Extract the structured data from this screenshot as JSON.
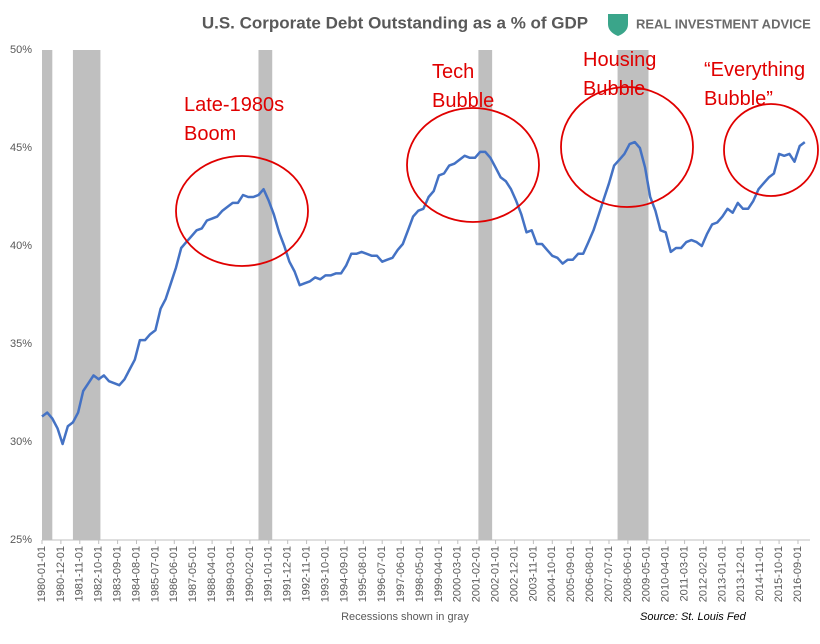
{
  "chart_data": {
    "type": "line",
    "title": "U.S. Corporate Debt Outstanding as a % of GDP",
    "brand": "REAL INVESTMENT ADVICE",
    "x_label": "Recessions shown in gray",
    "source": "Source: St. Louis Fed",
    "xlim": [
      "1980-01-01",
      "2017-04-01"
    ],
    "xticks": [
      "1980-01-01",
      "1980-12-01",
      "1981-11-01",
      "1982-10-01",
      "1983-09-01",
      "1984-08-01",
      "1985-07-01",
      "1986-06-01",
      "1987-05-01",
      "1988-04-01",
      "1989-03-01",
      "1990-02-01",
      "1991-01-01",
      "1991-12-01",
      "1992-11-01",
      "1993-10-01",
      "1994-09-01",
      "1995-08-01",
      "1996-07-01",
      "1997-06-01",
      "1998-05-01",
      "1999-04-01",
      "2000-03-01",
      "2001-02-01",
      "2002-01-01",
      "2002-12-01",
      "2003-11-01",
      "2004-10-01",
      "2005-09-01",
      "2006-08-01",
      "2007-07-01",
      "2008-06-01",
      "2009-05-01",
      "2010-04-01",
      "2011-03-01",
      "2012-02-01",
      "2013-01-01",
      "2013-12-01",
      "2014-11-01",
      "2015-10-01",
      "2016-09-01"
    ],
    "ylim": [
      25,
      50
    ],
    "yticks": [
      {
        "value": 25,
        "label": "25%"
      },
      {
        "value": 30,
        "label": "30%"
      },
      {
        "value": 35,
        "label": "35%"
      },
      {
        "value": 40,
        "label": "40%"
      },
      {
        "value": 45,
        "label": "45%"
      },
      {
        "value": 50,
        "label": "50%"
      }
    ],
    "recession_color": "#bfbfbf",
    "recessions": [
      [
        "1980-01-01",
        "1980-07-01"
      ],
      [
        "1981-07-01",
        "1982-11-01"
      ],
      [
        "1990-07-01",
        "1991-03-01"
      ],
      [
        "2001-03-01",
        "2001-11-01"
      ],
      [
        "2007-12-01",
        "2009-06-01"
      ]
    ],
    "annotation_color": "#e00000",
    "annotations": [
      {
        "lines": [
          "Late-1980s",
          "Boom"
        ]
      },
      {
        "lines": [
          "Tech",
          "Bubble"
        ]
      },
      {
        "lines": [
          "Housing",
          "Bubble"
        ]
      },
      {
        "lines": [
          "“Everything",
          "Bubble”"
        ]
      }
    ],
    "x": [
      "1980-01-01",
      "1980-04-01",
      "1980-07-01",
      "1980-10-01",
      "1981-01-01",
      "1981-04-01",
      "1981-07-01",
      "1981-10-01",
      "1982-01-01",
      "1982-04-01",
      "1982-07-01",
      "1982-10-01",
      "1983-01-01",
      "1983-04-01",
      "1983-07-01",
      "1983-10-01",
      "1984-01-01",
      "1984-04-01",
      "1984-07-01",
      "1984-10-01",
      "1985-01-01",
      "1985-04-01",
      "1985-07-01",
      "1985-10-01",
      "1986-01-01",
      "1986-04-01",
      "1986-07-01",
      "1986-10-01",
      "1987-01-01",
      "1987-04-01",
      "1987-07-01",
      "1987-10-01",
      "1988-01-01",
      "1988-04-01",
      "1988-07-01",
      "1988-10-01",
      "1989-01-01",
      "1989-04-01",
      "1989-07-01",
      "1989-10-01",
      "1990-01-01",
      "1990-04-01",
      "1990-07-01",
      "1990-10-01",
      "1991-01-01",
      "1991-04-01",
      "1991-07-01",
      "1991-10-01",
      "1992-01-01",
      "1992-04-01",
      "1992-07-01",
      "1992-10-01",
      "1993-01-01",
      "1993-04-01",
      "1993-07-01",
      "1993-10-01",
      "1994-01-01",
      "1994-04-01",
      "1994-07-01",
      "1994-10-01",
      "1995-01-01",
      "1995-04-01",
      "1995-07-01",
      "1995-10-01",
      "1996-01-01",
      "1996-04-01",
      "1996-07-01",
      "1996-10-01",
      "1997-01-01",
      "1997-04-01",
      "1997-07-01",
      "1997-10-01",
      "1998-01-01",
      "1998-04-01",
      "1998-07-01",
      "1998-10-01",
      "1999-01-01",
      "1999-04-01",
      "1999-07-01",
      "1999-10-01",
      "2000-01-01",
      "2000-04-01",
      "2000-07-01",
      "2000-10-01",
      "2001-01-01",
      "2001-04-01",
      "2001-07-01",
      "2001-10-01",
      "2002-01-01",
      "2002-04-01",
      "2002-07-01",
      "2002-10-01",
      "2003-01-01",
      "2003-04-01",
      "2003-07-01",
      "2003-10-01",
      "2004-01-01",
      "2004-04-01",
      "2004-07-01",
      "2004-10-01",
      "2005-01-01",
      "2005-04-01",
      "2005-07-01",
      "2005-10-01",
      "2006-01-01",
      "2006-04-01",
      "2006-07-01",
      "2006-10-01",
      "2007-01-01",
      "2007-04-01",
      "2007-07-01",
      "2007-10-01",
      "2008-01-01",
      "2008-04-01",
      "2008-07-01",
      "2008-10-01",
      "2009-01-01",
      "2009-04-01",
      "2009-07-01",
      "2009-10-01",
      "2010-01-01",
      "2010-04-01",
      "2010-07-01",
      "2010-10-01",
      "2011-01-01",
      "2011-04-01",
      "2011-07-01",
      "2011-10-01",
      "2012-01-01",
      "2012-04-01",
      "2012-07-01",
      "2012-10-01",
      "2013-01-01",
      "2013-04-01",
      "2013-07-01",
      "2013-10-01",
      "2014-01-01",
      "2014-04-01",
      "2014-07-01",
      "2014-10-01",
      "2015-01-01",
      "2015-04-01",
      "2015-07-01",
      "2015-10-01",
      "2016-01-01",
      "2016-04-01",
      "2016-07-01",
      "2016-10-01",
      "2017-01-01"
    ],
    "series": [
      {
        "name": "Corporate debt % of GDP",
        "color": "#4472c4",
        "values": [
          31.3,
          31.5,
          31.2,
          30.7,
          29.9,
          30.8,
          31.0,
          31.5,
          32.6,
          33.0,
          33.4,
          33.2,
          33.4,
          33.1,
          33.0,
          32.9,
          33.2,
          33.7,
          34.2,
          35.2,
          35.2,
          35.5,
          35.7,
          36.8,
          37.3,
          38.1,
          38.9,
          39.9,
          40.2,
          40.5,
          40.8,
          40.9,
          41.3,
          41.4,
          41.5,
          41.8,
          42.0,
          42.2,
          42.2,
          42.6,
          42.5,
          42.5,
          42.6,
          42.9,
          42.3,
          41.6,
          40.7,
          40.0,
          39.2,
          38.7,
          38.0,
          38.1,
          38.2,
          38.4,
          38.3,
          38.5,
          38.5,
          38.6,
          38.6,
          39.0,
          39.6,
          39.6,
          39.7,
          39.6,
          39.5,
          39.5,
          39.2,
          39.3,
          39.4,
          39.8,
          40.1,
          40.8,
          41.5,
          41.8,
          41.9,
          42.5,
          42.8,
          43.6,
          43.7,
          44.1,
          44.2,
          44.4,
          44.6,
          44.5,
          44.5,
          44.8,
          44.8,
          44.5,
          44.0,
          43.5,
          43.3,
          42.9,
          42.3,
          41.6,
          40.7,
          40.8,
          40.1,
          40.1,
          39.8,
          39.5,
          39.4,
          39.1,
          39.3,
          39.3,
          39.6,
          39.6,
          40.2,
          40.8,
          41.6,
          42.4,
          43.2,
          44.1,
          44.4,
          44.7,
          45.2,
          45.3,
          45.0,
          44.0,
          42.5,
          41.8,
          40.8,
          40.7,
          39.7,
          39.9,
          39.9,
          40.2,
          40.3,
          40.2,
          40.0,
          40.6,
          41.1,
          41.2,
          41.5,
          41.9,
          41.7,
          42.2,
          41.9,
          41.9,
          42.3,
          42.9,
          43.2,
          43.5,
          43.7,
          44.7,
          44.6,
          44.7,
          44.3,
          45.1,
          45.3
        ]
      }
    ]
  }
}
